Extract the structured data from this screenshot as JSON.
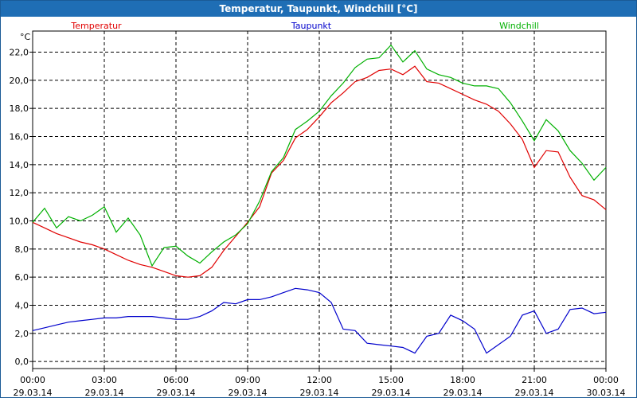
{
  "window": {
    "title": "Temperatur, Taupunkt, Windchill [°C]"
  },
  "chart_data": {
    "type": "line",
    "title": "Temperatur, Taupunkt, Windchill [°C]",
    "ylabel": "°C",
    "ylim": [
      -0.5,
      23.5
    ],
    "xlim": [
      0,
      24
    ],
    "grid": true,
    "legend": "top",
    "yticks": [
      "0,0",
      "2,0",
      "4,0",
      "6,0",
      "8,0",
      "10,0",
      "12,0",
      "14,0",
      "16,0",
      "18,0",
      "20,0",
      "22,0"
    ],
    "ytick_values": [
      0,
      2,
      4,
      6,
      8,
      10,
      12,
      14,
      16,
      18,
      20,
      22
    ],
    "xtick_values": [
      0,
      3,
      6,
      9,
      12,
      15,
      18,
      21,
      24
    ],
    "xticks": [
      {
        "time": "00:00",
        "date": "29.03.14"
      },
      {
        "time": "03:00",
        "date": "29.03.14"
      },
      {
        "time": "06:00",
        "date": "29.03.14"
      },
      {
        "time": "09:00",
        "date": "29.03.14"
      },
      {
        "time": "12:00",
        "date": "29.03.14"
      },
      {
        "time": "15:00",
        "date": "29.03.14"
      },
      {
        "time": "18:00",
        "date": "29.03.14"
      },
      {
        "time": "21:00",
        "date": "29.03.14"
      },
      {
        "time": "00:00",
        "date": "30.03.14"
      }
    ],
    "series": [
      {
        "name": "Temperatur",
        "color": "#e00000",
        "x": [
          0,
          0.5,
          1,
          1.5,
          2,
          2.5,
          3,
          3.5,
          4,
          4.5,
          5,
          5.5,
          6,
          6.5,
          7,
          7.5,
          8,
          8.5,
          9,
          9.5,
          10,
          10.5,
          11,
          11.5,
          12,
          12.5,
          13,
          13.5,
          14,
          14.5,
          15,
          15.5,
          16,
          16.5,
          17,
          17.5,
          18,
          18.5,
          19,
          19.5,
          20,
          20.5,
          21,
          21.5,
          22,
          22.5,
          23,
          23.5,
          24
        ],
        "values": [
          9.9,
          9.5,
          9.1,
          8.8,
          8.5,
          8.3,
          8.0,
          7.6,
          7.2,
          6.9,
          6.7,
          6.4,
          6.1,
          6.0,
          6.1,
          6.7,
          7.9,
          8.9,
          9.9,
          11.0,
          13.4,
          14.3,
          15.9,
          16.5,
          17.4,
          18.4,
          19.1,
          19.9,
          20.2,
          20.7,
          20.8,
          20.4,
          21.0,
          19.9,
          19.8,
          19.4,
          19.0,
          18.6,
          18.3,
          17.8,
          16.9,
          15.8,
          13.8,
          15.0,
          14.9,
          13.1,
          11.8,
          11.5,
          10.8
        ]
      },
      {
        "name": "Taupunkt",
        "color": "#0000cc",
        "x": [
          0,
          0.5,
          1,
          1.5,
          2,
          2.5,
          3,
          3.5,
          4,
          4.5,
          5,
          5.5,
          6,
          6.5,
          7,
          7.5,
          8,
          8.5,
          9,
          9.5,
          10,
          10.5,
          11,
          11.5,
          12,
          12.5,
          13,
          13.5,
          14,
          14.5,
          15,
          15.5,
          16,
          16.5,
          17,
          17.5,
          18,
          18.5,
          19,
          19.5,
          20,
          20.5,
          21,
          21.5,
          22,
          22.5,
          23,
          23.5,
          24
        ],
        "values": [
          2.2,
          2.4,
          2.6,
          2.8,
          2.9,
          3.0,
          3.1,
          3.1,
          3.2,
          3.2,
          3.2,
          3.1,
          3.0,
          3.0,
          3.2,
          3.6,
          4.2,
          4.1,
          4.4,
          4.4,
          4.6,
          4.9,
          5.2,
          5.1,
          4.9,
          4.2,
          2.3,
          2.2,
          1.3,
          1.2,
          1.1,
          1.0,
          0.6,
          1.8,
          2.0,
          3.3,
          2.9,
          2.3,
          0.6,
          1.2,
          1.8,
          3.3,
          3.6,
          2.0,
          2.3,
          3.7,
          3.8,
          3.4,
          3.5
        ]
      },
      {
        "name": "Windchill",
        "color": "#00b000",
        "x": [
          0,
          0.5,
          1,
          1.5,
          2,
          2.5,
          3,
          3.5,
          4,
          4.5,
          5,
          5.5,
          6,
          6.5,
          7,
          7.5,
          8,
          8.5,
          9,
          9.5,
          10,
          10.5,
          11,
          11.5,
          12,
          12.5,
          13,
          13.5,
          14,
          14.5,
          15,
          15.5,
          16,
          16.5,
          17,
          17.5,
          18,
          18.5,
          19,
          19.5,
          20,
          20.5,
          21,
          21.5,
          22,
          22.5,
          23,
          23.5,
          24
        ],
        "values": [
          9.9,
          10.9,
          9.5,
          10.3,
          10.0,
          10.4,
          11.0,
          9.2,
          10.2,
          9.0,
          6.8,
          8.1,
          8.2,
          7.5,
          7.0,
          7.8,
          8.5,
          9.0,
          9.8,
          11.4,
          13.5,
          14.5,
          16.5,
          17.1,
          17.8,
          18.9,
          19.8,
          20.9,
          21.5,
          21.6,
          22.5,
          21.3,
          22.1,
          20.8,
          20.4,
          20.2,
          19.8,
          19.6,
          19.6,
          19.4,
          18.4,
          17.1,
          15.7,
          17.2,
          16.4,
          15.0,
          14.1,
          12.9,
          13.8
        ]
      }
    ]
  }
}
